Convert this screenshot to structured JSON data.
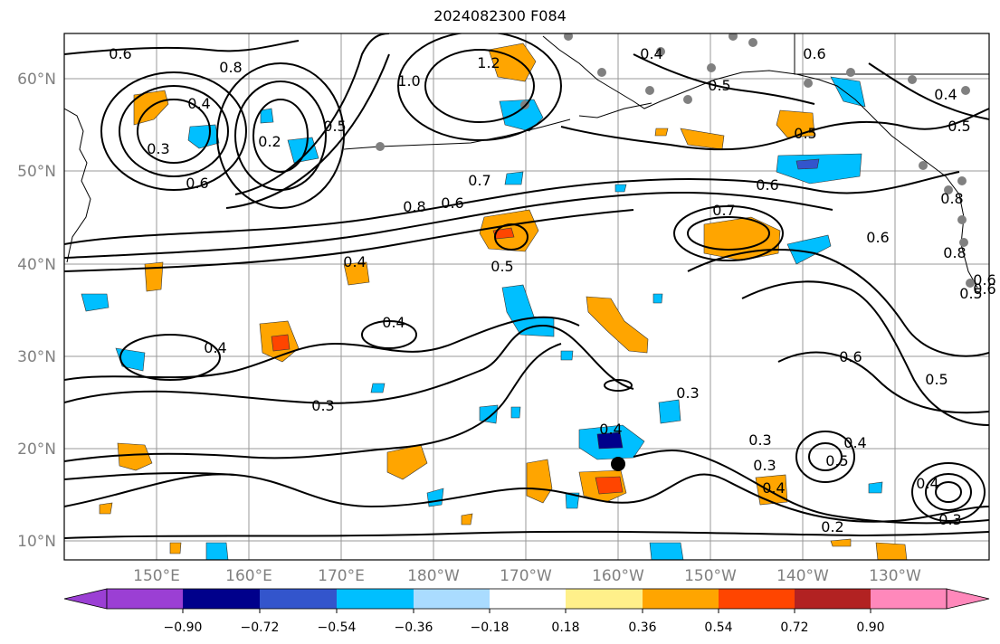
{
  "title": "2024082300 F084",
  "lat_labels": [
    "60°N",
    "50°N",
    "40°N",
    "30°N",
    "20°N",
    "10°N"
  ],
  "lon_labels": [
    "150°E",
    "160°E",
    "170°E",
    "180°W",
    "170°W",
    "160°W",
    "150°W",
    "140°W",
    "130°W"
  ],
  "colorbar": {
    "colors": [
      "#9b3fd4",
      "#00008b",
      "#3355cc",
      "#00bfff",
      "#aadcff",
      "#ffffff",
      "#fff08a",
      "#ffa500",
      "#ff4500",
      "#b22222",
      "#ff88bb"
    ],
    "tick_labels": [
      "−0.90",
      "−0.72",
      "−0.54",
      "−0.36",
      "−0.18",
      "0.18",
      "0.36",
      "0.54",
      "0.72",
      "0.90"
    ]
  },
  "contour_labels": [
    "0.6",
    "0.8",
    "0.3",
    "0.4",
    "0.2",
    "0.6",
    "0.5",
    "1.0",
    "1.2",
    "0.4",
    "0.5",
    "0.6",
    "0.4",
    "0.5",
    "0.6",
    "0.5",
    "0.8",
    "0.6",
    "0.7",
    "0.8",
    "0.6",
    "0.7",
    "0.4",
    "0.5",
    "0.6",
    "0.8",
    "0.6",
    "0.5",
    "0.4",
    "0.4",
    "0.3",
    "0.3",
    "0.6",
    "0.5",
    "0.3",
    "0.4",
    "0.3",
    "0.4",
    "0.5",
    "0.4",
    "0.4",
    "0.3",
    "0.2"
  ]
}
